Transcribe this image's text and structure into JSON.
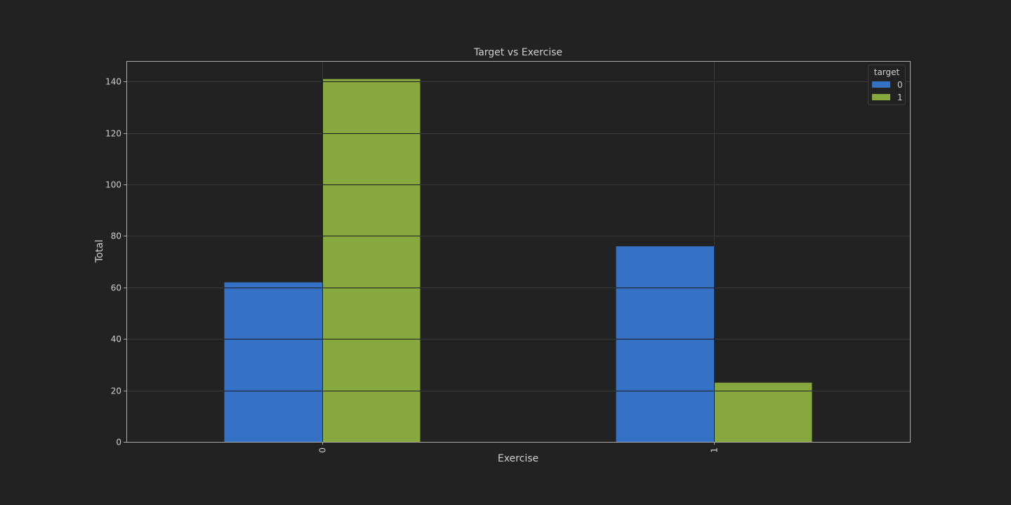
{
  "chart_data": {
    "type": "bar",
    "title": "Target vs Exercise",
    "xlabel": "Exercise",
    "ylabel": "Total",
    "categories": [
      "0",
      "1"
    ],
    "series": [
      {
        "name": "0",
        "values": [
          62,
          76
        ],
        "color": "#3572c6"
      },
      {
        "name": "1",
        "values": [
          141,
          23
        ],
        "color": "#86a83e"
      }
    ],
    "ylim": [
      0,
      148
    ],
    "yticks": [
      0,
      20,
      40,
      60,
      80,
      100,
      120,
      140
    ],
    "legend": {
      "title": "target",
      "placement": "top-right"
    },
    "grid": true,
    "colors": {
      "background": "#222222",
      "plot_border": "#aaaaaa",
      "grid": "#3a3a3a",
      "text": "#d0d0d0"
    }
  }
}
